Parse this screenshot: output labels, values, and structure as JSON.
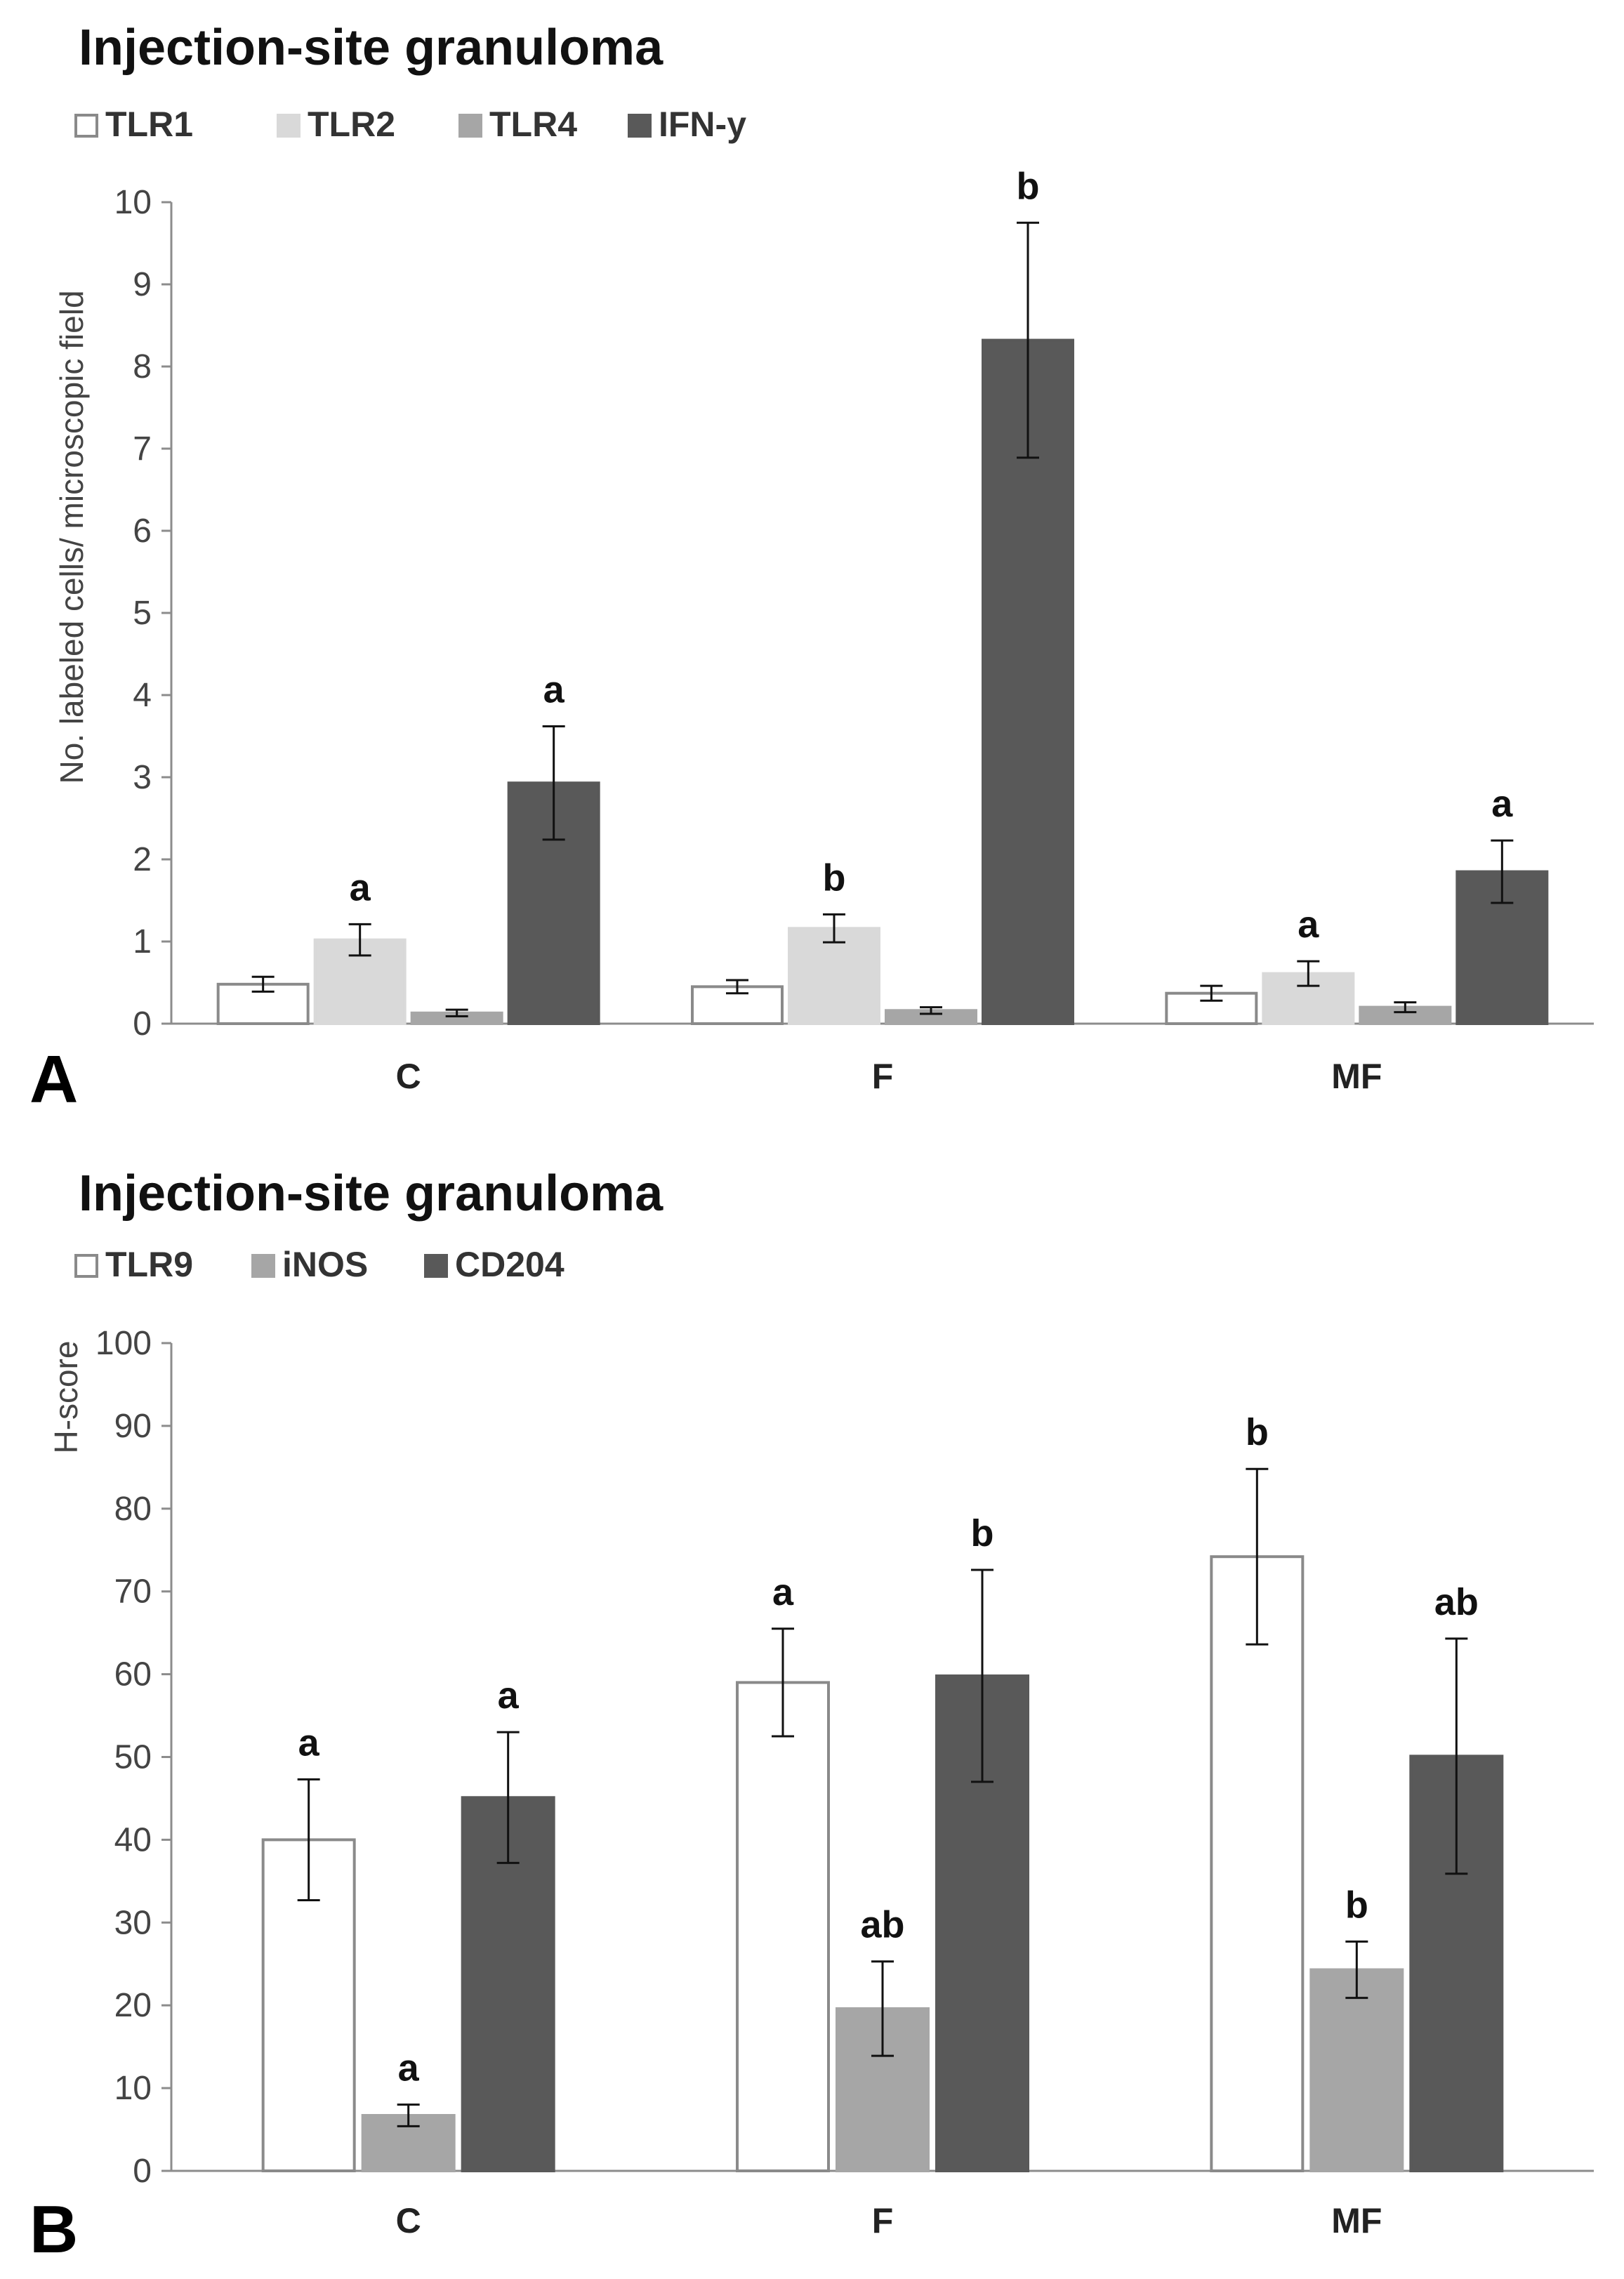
{
  "chart_data": [
    {
      "panel": "A",
      "type": "bar",
      "title": "Injection-site granuloma",
      "ylabel": "No. labeled cells/ microscopic field",
      "xlabel": "",
      "categories": [
        "C",
        "F",
        "MF"
      ],
      "ylim": [
        0,
        10
      ],
      "yticks": [
        0,
        1,
        2,
        3,
        4,
        5,
        6,
        7,
        8,
        9,
        10
      ],
      "legend": "top-left",
      "series": [
        {
          "name": "TLR1",
          "fill": "#ffffff",
          "stroke": "#8a8a8a",
          "values": [
            0.48,
            0.45,
            0.37
          ],
          "errors": [
            0.09,
            0.08,
            0.09
          ],
          "labels": [
            "",
            "",
            ""
          ]
        },
        {
          "name": "TLR2",
          "fill": "#d9d9d9",
          "stroke": "#d9d9d9",
          "values": [
            1.02,
            1.16,
            0.61
          ],
          "errors": [
            0.19,
            0.17,
            0.15
          ],
          "labels": [
            "a",
            "b",
            "a"
          ]
        },
        {
          "name": "TLR4",
          "fill": "#a6a6a6",
          "stroke": "#a6a6a6",
          "values": [
            0.13,
            0.16,
            0.2
          ],
          "errors": [
            0.04,
            0.04,
            0.06
          ],
          "labels": [
            "",
            "",
            ""
          ]
        },
        {
          "name": "IFN-y",
          "fill": "#595959",
          "stroke": "#595959",
          "values": [
            2.93,
            8.32,
            1.85
          ],
          "errors": [
            0.69,
            1.43,
            0.38
          ],
          "labels": [
            "a",
            "b",
            "a"
          ]
        }
      ]
    },
    {
      "panel": "B",
      "type": "bar",
      "title": "Injection-site granuloma",
      "ylabel": "H-score",
      "xlabel": "",
      "categories": [
        "C",
        "F",
        "MF"
      ],
      "ylim": [
        0,
        100
      ],
      "yticks": [
        0,
        10,
        20,
        30,
        40,
        50,
        60,
        70,
        80,
        90,
        100
      ],
      "legend": "top-left",
      "series": [
        {
          "name": "TLR9",
          "fill": "#ffffff",
          "stroke": "#8a8a8a",
          "values": [
            40,
            59,
            74.2
          ],
          "errors": [
            7.3,
            6.5,
            10.6
          ],
          "labels": [
            "a",
            "a",
            "b"
          ]
        },
        {
          "name": "iNOS",
          "fill": "#a6a6a6",
          "stroke": "#a6a6a6",
          "values": [
            6.7,
            19.6,
            24.3
          ],
          "errors": [
            1.3,
            5.7,
            3.4
          ],
          "labels": [
            "a",
            "ab",
            "b"
          ]
        },
        {
          "name": "CD204",
          "fill": "#595959",
          "stroke": "#595959",
          "values": [
            45.1,
            59.8,
            50.1
          ],
          "errors": [
            7.9,
            12.8,
            14.2
          ],
          "labels": [
            "a",
            "b",
            "ab"
          ]
        }
      ]
    }
  ]
}
